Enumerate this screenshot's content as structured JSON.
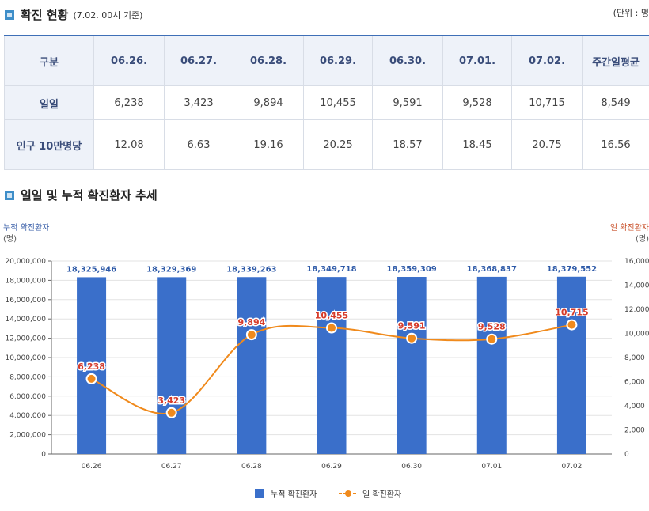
{
  "section1": {
    "title": "확진 현황",
    "subtitle": "(7.02. 00시 기준)",
    "unit": "(단위 : 명"
  },
  "table": {
    "headers": [
      "구분",
      "06.26.",
      "06.27.",
      "06.28.",
      "06.29.",
      "06.30.",
      "07.01.",
      "07.02.",
      "주간일평균"
    ],
    "rows": [
      {
        "label": "일일",
        "values": [
          "6,238",
          "3,423",
          "9,894",
          "10,455",
          "9,591",
          "9,528",
          "10,715",
          "8,549"
        ]
      },
      {
        "label": "인구 10만명당",
        "values": [
          "12.08",
          "6.63",
          "19.16",
          "20.25",
          "18.57",
          "18.45",
          "20.75",
          "16.56"
        ]
      }
    ]
  },
  "section2": {
    "title": "일일 및 누적 확진환자 추세"
  },
  "chart_data": {
    "type": "bar",
    "categories": [
      "06.26",
      "06.27",
      "06.28",
      "06.29",
      "06.30",
      "07.01",
      "07.02"
    ],
    "series": [
      {
        "name": "누적 확진환자",
        "type": "bar",
        "axis": "left",
        "color": "#3a6fca",
        "values": [
          18325946,
          18329369,
          18339263,
          18349718,
          18359309,
          18368837,
          18379552
        ],
        "labels": [
          "18,325,946",
          "18,329,369",
          "18,339,263",
          "18,349,718",
          "18,359,309",
          "18,368,837",
          "18,379,552"
        ]
      },
      {
        "name": "일 확진환자",
        "type": "line",
        "axis": "right",
        "color": "#f08a1c",
        "values": [
          6238,
          3423,
          9894,
          10455,
          9591,
          9528,
          10715
        ],
        "labels": [
          "6,238",
          "3,423",
          "9,894",
          "10,455",
          "9,591",
          "9,528",
          "10,715"
        ]
      }
    ],
    "y_left": {
      "label_line1": "누적 확진환자",
      "label_line2": "(명)",
      "range": [
        0,
        20000000
      ],
      "ticks": [
        "0",
        "2,000,000",
        "4,000,000",
        "6,000,000",
        "8,000,000",
        "10,000,000",
        "12,000,000",
        "14,000,000",
        "16,000,000",
        "18,000,000",
        "20,000,000"
      ]
    },
    "y_right": {
      "label_line1": "일 확진환자",
      "label_line2": "(명)",
      "range": [
        0,
        16000
      ],
      "ticks": [
        "0",
        "2,000",
        "4,000",
        "6,000",
        "8,000",
        "10,000",
        "12,000",
        "14,000",
        "16,000"
      ]
    },
    "legend_position": "bottom",
    "grid": true
  }
}
